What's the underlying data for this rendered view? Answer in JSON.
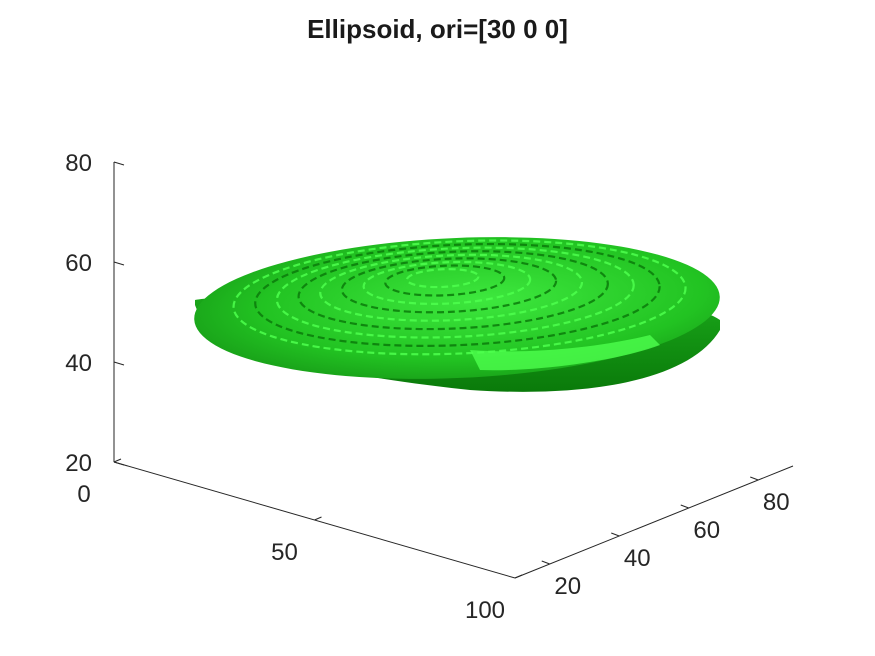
{
  "chart_data": {
    "type": "surface",
    "title": "Ellipsoid, ori=[30 0 0]",
    "xlabel": "",
    "ylabel": "",
    "zlabel": "",
    "x_ticks": [
      "0",
      "50",
      "100"
    ],
    "y_ticks": [
      "20",
      "40",
      "60",
      "80"
    ],
    "z_ticks": [
      "20",
      "40",
      "60",
      "80"
    ],
    "xlim": [
      0,
      100
    ],
    "ylim": [
      10,
      90
    ],
    "zlim": [
      20,
      80
    ],
    "grid": false,
    "surface": {
      "shape": "ellipsoid",
      "orientation": [
        30,
        0,
        0
      ],
      "color": "#22c322",
      "highlight_color": "#4dff4d",
      "shadow_color": "#0a7a0a"
    }
  }
}
